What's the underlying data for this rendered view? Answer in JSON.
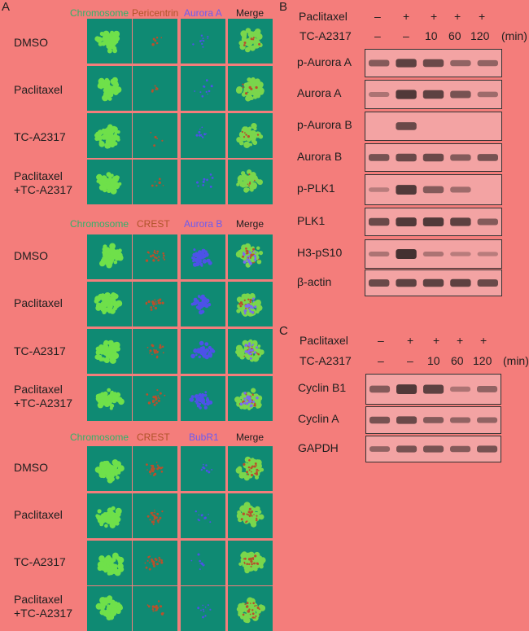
{
  "panel_a": {
    "letter": "A",
    "blocks": [
      {
        "headers": [
          "Chromosome",
          "Pericentrin",
          "Aurora A",
          "Merge"
        ],
        "rows": [
          "DMSO",
          "Paclitaxel",
          "TC-A2317",
          "Paclitaxel\n+TC-A2317"
        ]
      },
      {
        "headers": [
          "Chromosome",
          "CREST",
          "Aurora B",
          "Merge"
        ],
        "rows": [
          "DMSO",
          "Paclitaxel",
          "TC-A2317",
          "Paclitaxel\n+TC-A2317"
        ]
      },
      {
        "headers": [
          "Chromosome",
          "CREST",
          "BubR1",
          "Merge"
        ],
        "rows": [
          "DMSO",
          "Paclitaxel",
          "TC-A2317",
          "Paclitaxel\n+TC-A2317"
        ]
      }
    ]
  },
  "panel_b": {
    "letter": "B",
    "treatment_row1_label": "Paclitaxel",
    "treatment_row1": [
      "–",
      "+",
      "+",
      "+",
      "+"
    ],
    "treatment_row2_label": "TC-A2317",
    "treatment_row2": [
      "–",
      "–",
      "10",
      "60",
      "120"
    ],
    "unit": "(min)",
    "blots": [
      "p-Aurora A",
      "Aurora A",
      "p-Aurora B",
      "Aurora B",
      "p-PLK1",
      "PLK1",
      "H3-pS10",
      "β-actin"
    ]
  },
  "panel_c": {
    "letter": "C",
    "treatment_row1_label": "Paclitaxel",
    "treatment_row1": [
      "–",
      "+",
      "+",
      "+",
      "+"
    ],
    "treatment_row2_label": "TC-A2317",
    "treatment_row2": [
      "–",
      "–",
      "10",
      "60",
      "120"
    ],
    "unit": "(min)",
    "blots": [
      "Cyclin B1",
      "Cyclin A",
      "GAPDH"
    ]
  }
}
